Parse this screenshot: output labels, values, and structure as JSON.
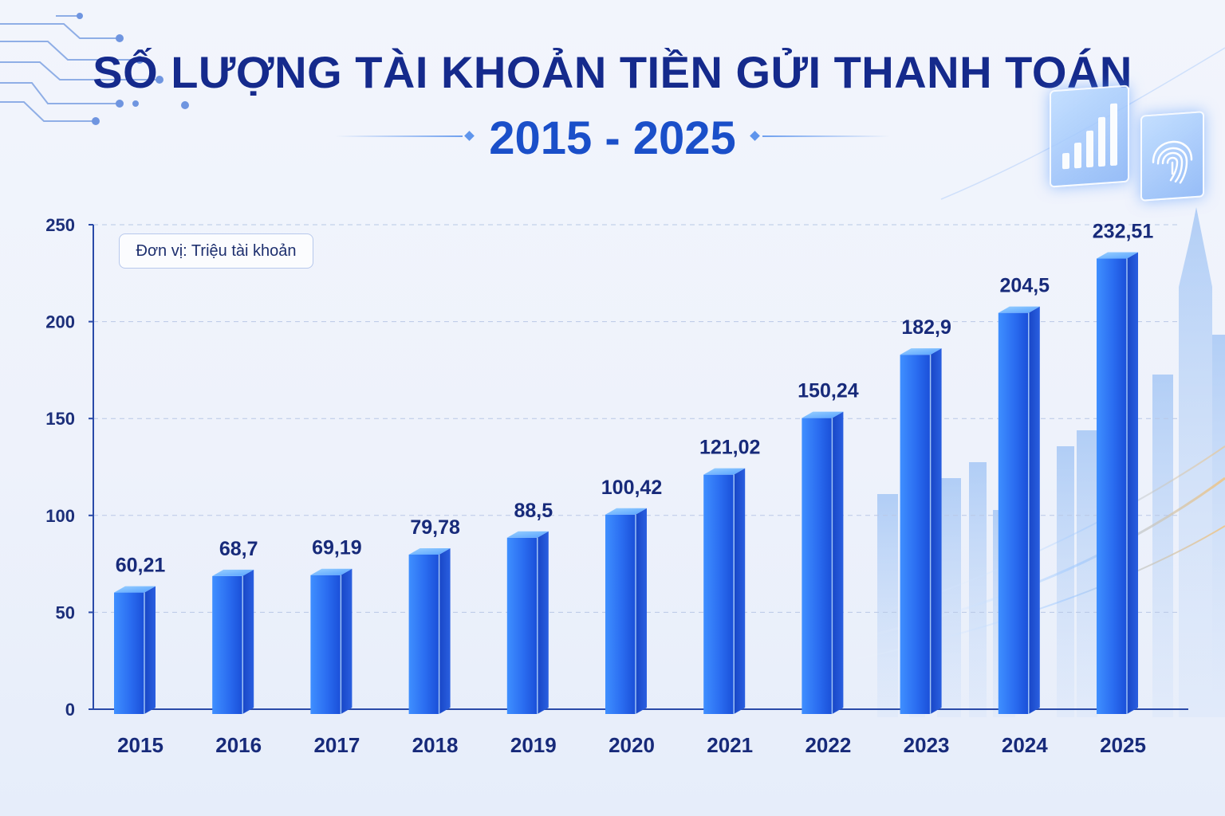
{
  "title": "SỐ LƯỢNG TÀI KHOẢN TIỀN GỬI THANH TOÁN",
  "subtitle": "2015 - 2025",
  "unit_label": "Đơn vị: Triệu tài khoản",
  "icons": [
    "circuit-lines-icon",
    "bar-chart-tile-icon",
    "fingerprint-tile-icon",
    "city-skyline-icon"
  ],
  "colors": {
    "title": "#152a8c",
    "subtitle": "#1a4fc9",
    "bar_light": "#4a9cff",
    "bar_dark": "#1346d6",
    "axis": "#1c2f7a"
  },
  "chart_data": {
    "type": "bar",
    "title": "SỐ LƯỢNG TÀI KHOẢN TIỀN GỬI THANH TOÁN",
    "subtitle": "2015 - 2025",
    "categories": [
      "2015",
      "2016",
      "2017",
      "2018",
      "2019",
      "2020",
      "2021",
      "2022",
      "2023",
      "2024",
      "2025"
    ],
    "values": [
      60.21,
      68.7,
      69.19,
      79.78,
      88.5,
      100.42,
      121.02,
      150.24,
      182.9,
      204.5,
      232.51
    ],
    "value_labels": [
      "60,21",
      "68,7",
      "69,19",
      "79,78",
      "88,5",
      "100,42",
      "121,02",
      "150,24",
      "182,9",
      "204,5",
      "232,51"
    ],
    "ylim": [
      0,
      250
    ],
    "yticks": [
      "0",
      "50",
      "100",
      "150",
      "200",
      "250"
    ],
    "grid": true,
    "unit": "Đơn vị: Triệu tài khoản"
  }
}
